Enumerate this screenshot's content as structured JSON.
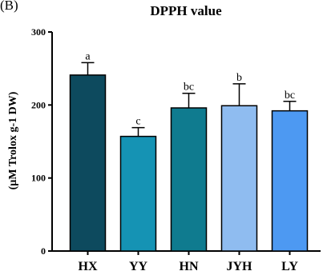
{
  "panel_label": "(B)",
  "chart_data": {
    "type": "bar",
    "title": "DPPH value",
    "xlabel": "",
    "ylabel": "(µM Trolox g-1 DW)",
    "categories": [
      "HX",
      "YY",
      "HN",
      "JYH",
      "LY"
    ],
    "values": [
      241,
      157,
      196,
      199,
      192
    ],
    "errors": [
      17,
      12,
      20,
      30,
      13
    ],
    "significance": [
      "a",
      "c",
      "bc",
      "b",
      "bc"
    ],
    "colors": [
      "#0d4a5e",
      "#1593b4",
      "#0f7b8f",
      "#8fbcf0",
      "#4d99f2"
    ],
    "ylim": [
      0,
      300
    ],
    "yticks": [
      0,
      100,
      200,
      300
    ],
    "grid": false,
    "legend": "none"
  }
}
